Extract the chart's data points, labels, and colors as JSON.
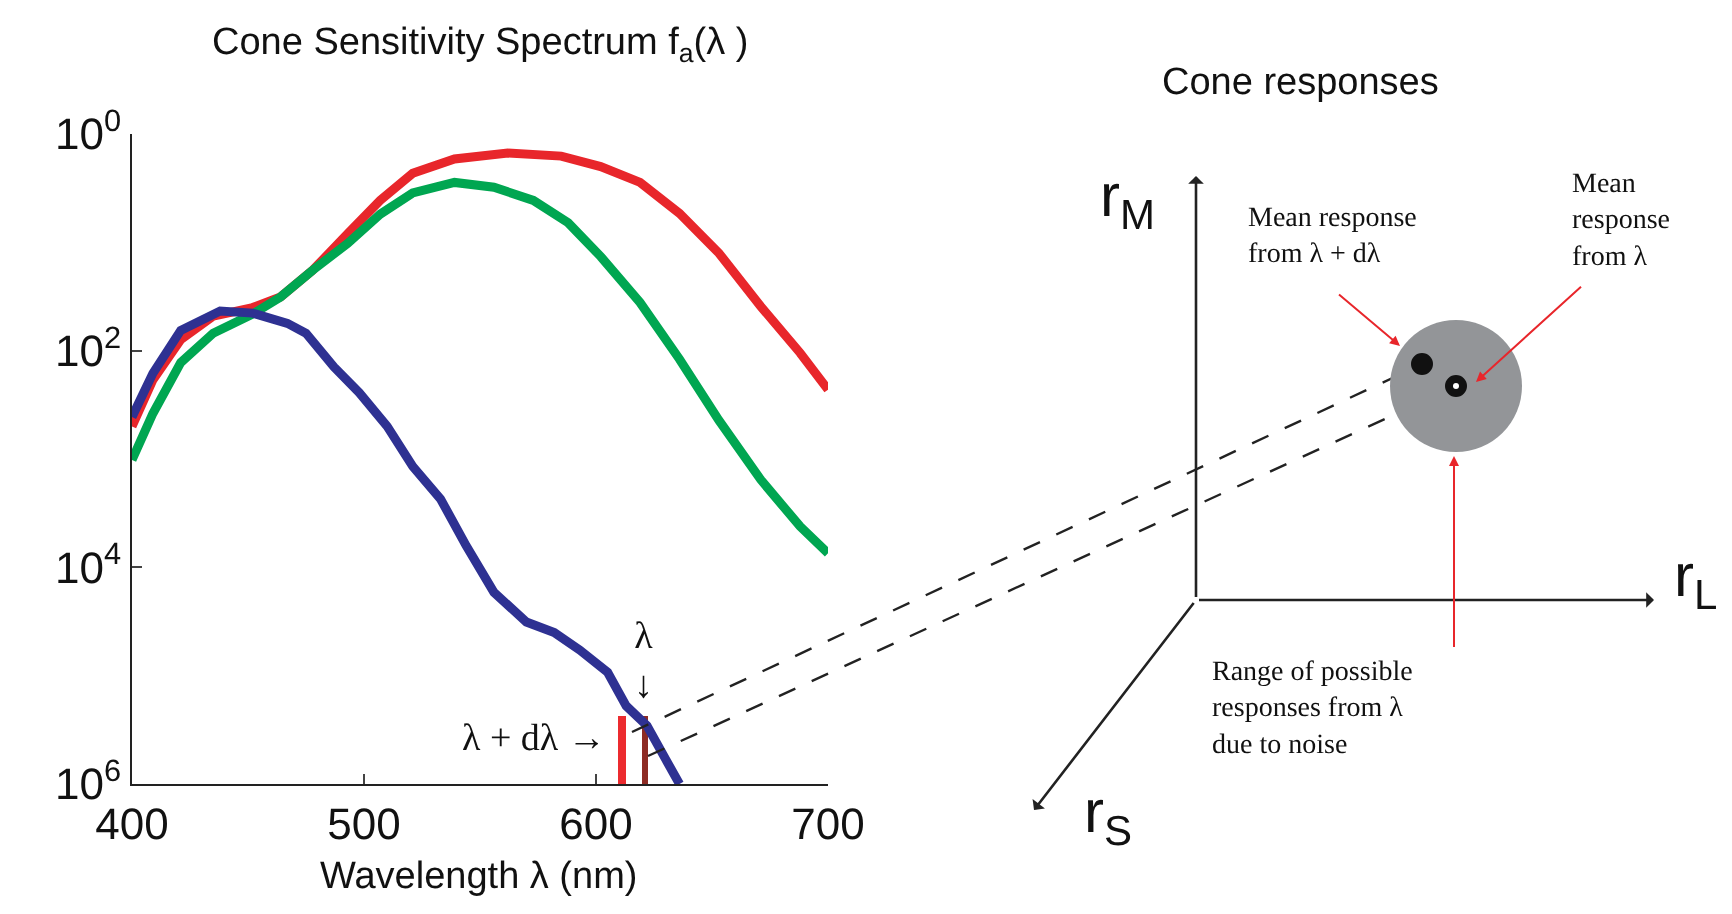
{
  "chart_data": [
    {
      "type": "line",
      "title": "Cone Sensitivity Spectrum f$_{a}$(λ )",
      "xlabel": "Wavelength λ (nm)",
      "xlim": [
        400,
        700
      ],
      "xticks": [
        400,
        500,
        600,
        700
      ],
      "log": true,
      "ylim": [
        1000000,
        1
      ],
      "yticks": [
        {
          "value": 1,
          "label": "10$^{0}$"
        },
        {
          "value": 100,
          "label": "10$^{2}$"
        },
        {
          "value": 10000,
          "label": "10$^{4}$"
        },
        {
          "value": 1000000,
          "label": "10$^{6}$"
        }
      ],
      "series": [
        {
          "color": "#e8262b",
          "x": [
            400,
            409,
            421,
            435,
            452,
            464,
            478,
            493,
            507,
            521,
            539,
            562,
            585,
            602,
            619,
            636,
            653,
            671,
            688,
            700
          ],
          "values": [
            500,
            186,
            79,
            48,
            40,
            32,
            18,
            8.3,
            4.1,
            2.3,
            1.7,
            1.5,
            1.6,
            2.0,
            2.8,
            5.4,
            12.6,
            39,
            105,
            229
          ]
        },
        {
          "color": "#00a651",
          "x": [
            400,
            409,
            421,
            435,
            452,
            464,
            478,
            493,
            507,
            521,
            539,
            556,
            573,
            588,
            602,
            619,
            636,
            653,
            671,
            688,
            700
          ],
          "values": [
            1020,
            380,
            129,
            69,
            46,
            32,
            18,
            10.2,
            5.5,
            3.5,
            2.8,
            3.1,
            4.1,
            6.6,
            13.5,
            36,
            120,
            440,
            1550,
            4200,
            7400
          ]
        },
        {
          "color": "#2e3192",
          "x": [
            400,
            409,
            421,
            438,
            452,
            467,
            475,
            487,
            498,
            510,
            521,
            533,
            544,
            556,
            570,
            582,
            593,
            605,
            613,
            622,
            630,
            636
          ],
          "values": [
            410,
            162,
            65,
            43,
            45,
            56,
            69,
            141,
            245,
            500,
            1170,
            2340,
            6300,
            17000,
            32000,
            40000,
            58000,
            93000,
            190000,
            290000,
            590000,
            1000000
          ]
        },
        {
          "type": "bar",
          "x": [
            611,
            621
          ],
          "base": [
            1000000,
            1000000
          ],
          "values": [
            -766000,
            -766000
          ],
          "colors": [
            "#ec2b2f",
            "#8d2b24"
          ]
        }
      ],
      "annotations": [
        {
          "text": "λ + dλ →",
          "x": 611,
          "y": 385000
        },
        {
          "text": "λ\n↓",
          "x": 621,
          "y": 234000
        }
      ]
    },
    {
      "type": "other",
      "title": "Cone responses",
      "annotations": [
        "r$_{M}$",
        "r$_{L}$",
        "r$_{S}$",
        "Mean response\nfrom λ + dλ",
        "Mean\nresponse\nfrom λ",
        "Range of possible\nresponses from λ\ndue to noise"
      ]
    }
  ]
}
